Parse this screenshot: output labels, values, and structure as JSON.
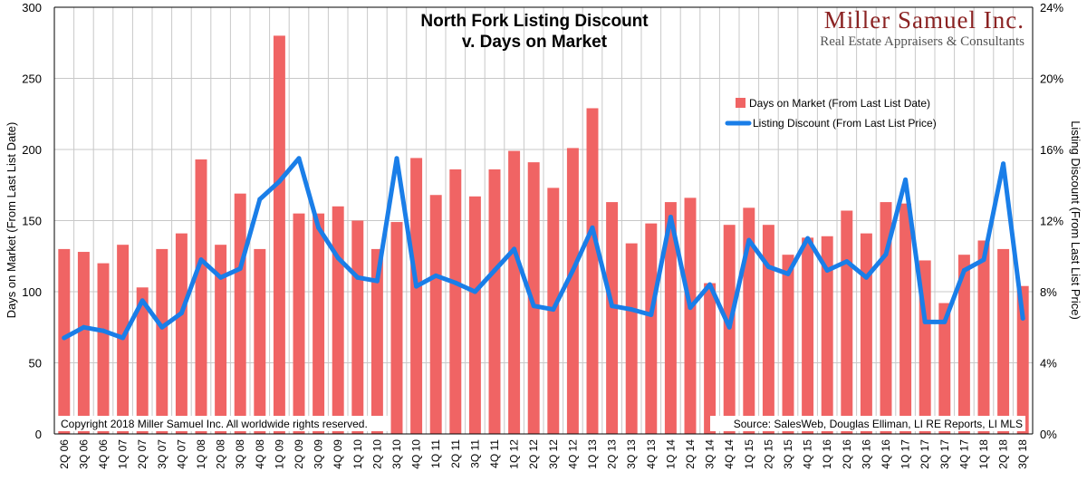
{
  "logo": {
    "name": "Miller Samuel Inc.",
    "tagline": "Real Estate Appraisers & Consultants"
  },
  "colors": {
    "bars": "#f06464",
    "line": "#1a7ee8",
    "grid": "#c8c8c8"
  },
  "chart_data": {
    "type": "bar+line",
    "title": "North Fork Listing Discount",
    "subtitle": "v. Days on Market",
    "ylabel_left": "Days on Market (From Last List Date)",
    "ylabel_right": "Listing Discount (From Last List Price)",
    "ylim_left": [
      0,
      300
    ],
    "yticks_left": [
      "0",
      "50",
      "100",
      "150",
      "200",
      "250",
      "300"
    ],
    "ylim_right": [
      0,
      24
    ],
    "yticks_right": [
      "0%",
      "4%",
      "8%",
      "12%",
      "16%",
      "20%",
      "24%"
    ],
    "grid": true,
    "legend_position": "top-right",
    "categories": [
      "2Q 06",
      "3Q 06",
      "4Q 06",
      "1Q 07",
      "2Q 07",
      "3Q 07",
      "4Q 07",
      "1Q 08",
      "2Q 08",
      "3Q 08",
      "4Q 08",
      "1Q 09",
      "2Q 09",
      "3Q 09",
      "4Q 09",
      "1Q 10",
      "2Q 10",
      "3Q 10",
      "4Q 10",
      "1Q 11",
      "2Q 11",
      "3Q 11",
      "4Q 11",
      "1Q 12",
      "2Q 12",
      "3Q 12",
      "4Q 12",
      "1Q 13",
      "2Q 13",
      "3Q 13",
      "4Q 13",
      "1Q 14",
      "2Q 14",
      "3Q 14",
      "4Q 14",
      "1Q 15",
      "2Q 15",
      "3Q 15",
      "4Q 15",
      "1Q 16",
      "2Q 16",
      "3Q 16",
      "4Q 16",
      "1Q 17",
      "2Q 17",
      "3Q 17",
      "4Q 17",
      "1Q 18",
      "2Q 18",
      "3Q 18"
    ],
    "series": [
      {
        "name": "Days on Market (From Last List Date)",
        "type": "bar",
        "axis": "left",
        "values": [
          130,
          128,
          120,
          133,
          103,
          130,
          141,
          193,
          133,
          169,
          130,
          280,
          155,
          155,
          160,
          150,
          130,
          149,
          194,
          168,
          186,
          167,
          186,
          199,
          191,
          173,
          201,
          229,
          163,
          134,
          148,
          163,
          166,
          106,
          147,
          159,
          147,
          126,
          138,
          139,
          157,
          141,
          163,
          162,
          122,
          92,
          126,
          136,
          130,
          104
        ]
      },
      {
        "name": "Listing Discount (From Last List Price)",
        "type": "line",
        "axis": "right",
        "unit": "%",
        "values": [
          5.4,
          6.0,
          5.8,
          5.4,
          7.5,
          6.0,
          6.8,
          9.8,
          8.8,
          9.3,
          13.2,
          14.2,
          15.5,
          11.6,
          9.9,
          8.8,
          8.6,
          15.5,
          8.3,
          8.9,
          8.5,
          8.0,
          9.2,
          10.4,
          7.2,
          7.0,
          9.2,
          11.6,
          7.2,
          7.0,
          6.7,
          12.2,
          7.1,
          8.4,
          6.0,
          10.9,
          9.4,
          9.0,
          11.0,
          9.2,
          9.7,
          8.8,
          10.1,
          14.3,
          6.3,
          6.3,
          9.2,
          9.8,
          15.2,
          6.5
        ]
      }
    ],
    "annotations": {
      "copyright": "Copyright 2018 Miller Samuel Inc.  All worldwide rights reserved.",
      "source": "Source: SalesWeb, Douglas Elliman, LI RE Reports, LI MLS"
    }
  }
}
